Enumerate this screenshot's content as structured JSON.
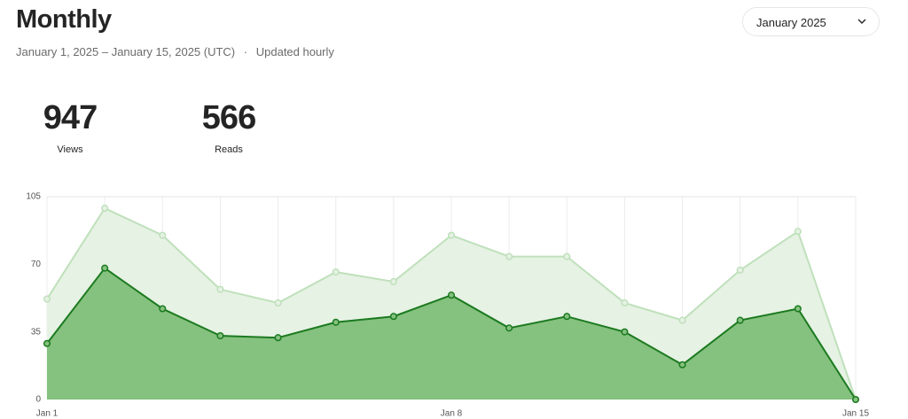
{
  "header": {
    "title": "Monthly",
    "date_range": "January 1, 2025 – January 15, 2025 (UTC)",
    "separator": "·",
    "update_note": "Updated hourly",
    "dropdown": "January 2025"
  },
  "stats": [
    {
      "value": 947,
      "label": "Views"
    },
    {
      "value": 566,
      "label": "Reads"
    }
  ],
  "chart_data": {
    "type": "area",
    "categories": [
      "Jan 1",
      null,
      null,
      null,
      null,
      null,
      null,
      "Jan 8",
      null,
      null,
      null,
      null,
      null,
      null,
      "Jan 15"
    ],
    "series": [
      {
        "name": "Views",
        "color": "#bfe0bb",
        "fill": "#e6f2e4",
        "values": [
          52,
          99,
          85,
          57,
          50,
          66,
          61,
          85,
          74,
          74,
          50,
          41,
          67,
          87,
          0
        ]
      },
      {
        "name": "Reads",
        "color": "#1b7a1f",
        "fill": "#85c17f",
        "values": [
          29,
          68,
          47,
          33,
          32,
          40,
          43,
          54,
          37,
          43,
          35,
          18,
          41,
          47,
          0
        ]
      }
    ],
    "ylim": [
      0,
      105
    ],
    "yticks": [
      0,
      35,
      70,
      105
    ],
    "grid": true
  }
}
